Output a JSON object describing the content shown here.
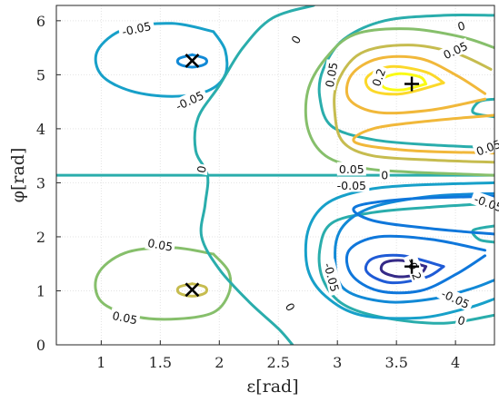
{
  "chart_data": {
    "type": "contour",
    "title": "",
    "xlabel": "ε[rad]",
    "ylabel": "φ[rad]",
    "xlim": [
      0.62,
      4.33
    ],
    "ylim": [
      0,
      6.283
    ],
    "grid": true,
    "xticks": [
      1,
      1.5,
      2,
      2.5,
      3,
      3.5,
      4
    ],
    "yticks": [
      0,
      1,
      2,
      3,
      4,
      5,
      6
    ],
    "xtick_labels": [
      "1",
      "1.5",
      "2",
      "2.5",
      "3",
      "3.5",
      "4"
    ],
    "ytick_labels": [
      "0",
      "1",
      "2",
      "3",
      "4",
      "5",
      "6"
    ],
    "colormap": "parula",
    "level_colors": {
      "-0.25": "#352a87",
      "-0.2": "#1f5bd6",
      "-0.15": "#0f77db",
      "-0.1": "#1189d6",
      "-0.05": "#17a0c9",
      "0": "#2aadac",
      "0.05": "#86bf6b",
      "0.1": "#c6bc4f",
      "0.15": "#f1b83a",
      "0.2": "#fbd82a",
      "0.25": "#f9fb15"
    },
    "contours": [
      {
        "level": -0.05,
        "points": [
          [
            1.95,
            5.8
          ],
          [
            1.6,
            5.95
          ],
          [
            1.2,
            5.85
          ],
          [
            0.97,
            5.45
          ],
          [
            1.0,
            5.0
          ],
          [
            1.25,
            4.7
          ],
          [
            1.6,
            4.6
          ],
          [
            1.9,
            4.7
          ],
          [
            2.05,
            5.0
          ],
          [
            2.05,
            5.45
          ],
          [
            1.95,
            5.8
          ]
        ]
      },
      {
        "level": -0.1,
        "points": [
          [
            1.77,
            5.37
          ],
          [
            1.88,
            5.3
          ],
          [
            1.88,
            5.2
          ],
          [
            1.77,
            5.14
          ],
          [
            1.66,
            5.2
          ],
          [
            1.66,
            5.3
          ],
          [
            1.77,
            5.37
          ]
        ]
      },
      {
        "level": 0.05,
        "points": [
          [
            1.95,
            1.68
          ],
          [
            1.6,
            1.8
          ],
          [
            1.2,
            1.7
          ],
          [
            0.97,
            1.3
          ],
          [
            1.0,
            0.8
          ],
          [
            1.3,
            0.52
          ],
          [
            1.65,
            0.48
          ],
          [
            1.95,
            0.6
          ],
          [
            2.08,
            0.95
          ],
          [
            2.08,
            1.35
          ],
          [
            1.95,
            1.68
          ]
        ]
      },
      {
        "level": 0.1,
        "points": [
          [
            1.77,
            1.13
          ],
          [
            1.88,
            1.07
          ],
          [
            1.88,
            0.96
          ],
          [
            1.77,
            0.9
          ],
          [
            1.66,
            0.96
          ],
          [
            1.66,
            1.07
          ],
          [
            1.77,
            1.13
          ]
        ]
      },
      {
        "level": 0,
        "points": [
          [
            0.62,
            3.14
          ],
          [
            1.5,
            3.14
          ],
          [
            2.5,
            3.14
          ],
          [
            3.5,
            3.14
          ],
          [
            4.33,
            3.14
          ]
        ]
      },
      {
        "level": 0,
        "points": [
          [
            2.8,
            6.283
          ],
          [
            2.45,
            6.05
          ],
          [
            2.2,
            5.5
          ],
          [
            2.0,
            4.8
          ],
          [
            1.82,
            4.2
          ],
          [
            1.8,
            3.6
          ],
          [
            1.9,
            3.14
          ],
          [
            1.88,
            2.6
          ],
          [
            1.85,
            2.0
          ],
          [
            2.0,
            1.4
          ],
          [
            2.25,
            0.8
          ],
          [
            2.5,
            0.3
          ],
          [
            2.62,
            0.0
          ]
        ]
      },
      {
        "level": 0,
        "points": [
          [
            4.33,
            4.55
          ],
          [
            4.2,
            4.5
          ],
          [
            4.15,
            4.3
          ],
          [
            4.33,
            4.22
          ]
        ]
      },
      {
        "level": 0,
        "points": [
          [
            4.33,
            1.9
          ],
          [
            4.2,
            1.95
          ],
          [
            4.15,
            2.12
          ],
          [
            4.33,
            2.2
          ]
        ]
      },
      {
        "level": 0,
        "points": [
          [
            4.33,
            6.1
          ],
          [
            3.9,
            6.1
          ],
          [
            3.4,
            6.0
          ],
          [
            3.05,
            5.65
          ],
          [
            2.88,
            5.1
          ],
          [
            2.85,
            4.6
          ],
          [
            2.95,
            4.05
          ],
          [
            3.3,
            3.8
          ],
          [
            3.8,
            3.7
          ],
          [
            4.33,
            3.65
          ]
        ]
      },
      {
        "level": 0,
        "points": [
          [
            4.33,
            0.55
          ],
          [
            3.9,
            0.4
          ],
          [
            3.4,
            0.5
          ],
          [
            3.05,
            0.75
          ],
          [
            2.88,
            1.2
          ],
          [
            2.85,
            1.75
          ],
          [
            2.95,
            2.25
          ],
          [
            3.3,
            2.45
          ],
          [
            3.8,
            2.55
          ],
          [
            4.33,
            2.62
          ]
        ]
      },
      {
        "level": 0.05,
        "points": [
          [
            4.33,
            3.14
          ],
          [
            3.6,
            3.2
          ],
          [
            3.2,
            3.28
          ],
          [
            2.9,
            3.5
          ],
          [
            2.75,
            4.0
          ],
          [
            2.75,
            4.7
          ],
          [
            2.9,
            5.3
          ],
          [
            3.15,
            5.75
          ],
          [
            3.6,
            5.85
          ],
          [
            4.05,
            5.7
          ],
          [
            4.33,
            5.5
          ]
        ]
      },
      {
        "level": -0.05,
        "points": [
          [
            4.33,
            3.0
          ],
          [
            3.6,
            2.95
          ],
          [
            3.2,
            2.85
          ],
          [
            2.9,
            2.6
          ],
          [
            2.75,
            2.1
          ],
          [
            2.75,
            1.4
          ],
          [
            2.9,
            0.9
          ],
          [
            3.2,
            0.55
          ],
          [
            3.7,
            0.5
          ],
          [
            4.1,
            0.68
          ],
          [
            4.33,
            0.85
          ]
        ]
      },
      {
        "level": 0.1,
        "points": [
          [
            4.33,
            3.38
          ],
          [
            3.8,
            3.42
          ],
          [
            3.3,
            3.5
          ],
          [
            3.05,
            3.75
          ],
          [
            2.98,
            4.25
          ],
          [
            3.0,
            4.85
          ],
          [
            3.2,
            5.4
          ],
          [
            3.6,
            5.55
          ],
          [
            4.0,
            5.4
          ],
          [
            4.3,
            5.1
          ]
        ]
      },
      {
        "level": -0.1,
        "points": [
          [
            4.33,
            2.8
          ],
          [
            3.8,
            2.75
          ],
          [
            3.3,
            2.55
          ],
          [
            3.05,
            2.2
          ],
          [
            2.98,
            1.7
          ],
          [
            3.05,
            1.05
          ],
          [
            3.4,
            0.8
          ],
          [
            3.8,
            0.85
          ],
          [
            4.15,
            1.05
          ],
          [
            4.33,
            1.2
          ]
        ]
      },
      {
        "level": 0.15,
        "points": [
          [
            4.25,
            4.55
          ],
          [
            3.8,
            4.35
          ],
          [
            3.35,
            4.3
          ],
          [
            3.1,
            4.55
          ],
          [
            3.12,
            5.0
          ],
          [
            3.35,
            5.3
          ],
          [
            3.7,
            5.3
          ],
          [
            4.0,
            5.0
          ],
          [
            4.25,
            4.65
          ]
        ]
      },
      {
        "level": 0.15,
        "points": [
          [
            4.33,
            4.25
          ],
          [
            3.8,
            4.15
          ],
          [
            3.3,
            4.0
          ],
          [
            3.15,
            3.75
          ],
          [
            3.6,
            3.6
          ],
          [
            4.33,
            3.55
          ]
        ]
      },
      {
        "level": -0.15,
        "points": [
          [
            4.25,
            1.75
          ],
          [
            3.8,
            1.95
          ],
          [
            3.35,
            2.0
          ],
          [
            3.1,
            1.75
          ],
          [
            3.12,
            1.3
          ],
          [
            3.35,
            1.0
          ],
          [
            3.7,
            1.0
          ],
          [
            4.0,
            1.3
          ],
          [
            4.25,
            1.65
          ]
        ]
      },
      {
        "level": -0.15,
        "points": [
          [
            4.33,
            2.05
          ],
          [
            3.8,
            2.15
          ],
          [
            3.3,
            2.3
          ],
          [
            3.15,
            2.55
          ],
          [
            3.6,
            2.7
          ],
          [
            4.33,
            2.75
          ]
        ]
      },
      {
        "level": 0.2,
        "points": [
          [
            3.9,
            4.85
          ],
          [
            3.55,
            4.65
          ],
          [
            3.3,
            4.7
          ],
          [
            3.25,
            4.95
          ],
          [
            3.45,
            5.15
          ],
          [
            3.75,
            5.05
          ],
          [
            3.9,
            4.85
          ]
        ]
      },
      {
        "level": -0.2,
        "points": [
          [
            3.9,
            1.45
          ],
          [
            3.55,
            1.65
          ],
          [
            3.3,
            1.6
          ],
          [
            3.25,
            1.35
          ],
          [
            3.45,
            1.15
          ],
          [
            3.75,
            1.25
          ],
          [
            3.9,
            1.45
          ]
        ]
      },
      {
        "level": 0.25,
        "points": [
          [
            3.75,
            4.83
          ],
          [
            3.55,
            4.72
          ],
          [
            3.4,
            4.76
          ],
          [
            3.38,
            4.92
          ],
          [
            3.52,
            5.02
          ],
          [
            3.7,
            4.96
          ],
          [
            3.75,
            4.83
          ]
        ]
      },
      {
        "level": -0.25,
        "points": [
          [
            3.75,
            1.45
          ],
          [
            3.55,
            1.56
          ],
          [
            3.4,
            1.52
          ],
          [
            3.38,
            1.36
          ],
          [
            3.52,
            1.26
          ],
          [
            3.7,
            1.32
          ],
          [
            3.75,
            1.45
          ]
        ]
      }
    ],
    "contour_labels": [
      {
        "text": "-0.05",
        "x": 1.3,
        "y": 5.85,
        "angle": -12
      },
      {
        "text": "-0.05",
        "x": 1.75,
        "y": 4.52,
        "angle": -25
      },
      {
        "text": "0.05",
        "x": 1.5,
        "y": 1.85,
        "angle": 10
      },
      {
        "text": "0.05",
        "x": 1.2,
        "y": 0.5,
        "angle": 12
      },
      {
        "text": "0",
        "x": 2.65,
        "y": 5.65,
        "angle": -60
      },
      {
        "text": "0",
        "x": 1.85,
        "y": 3.25,
        "angle": -80
      },
      {
        "text": "0",
        "x": 2.6,
        "y": 0.7,
        "angle": 60
      },
      {
        "text": "0.05",
        "x": 2.95,
        "y": 5.0,
        "angle": -80
      },
      {
        "text": "-0.05",
        "x": 2.95,
        "y": 1.25,
        "angle": 75
      },
      {
        "text": "0.2",
        "x": 3.35,
        "y": 4.95,
        "angle": -70
      },
      {
        "text": "-0.2",
        "x": 3.65,
        "y": 1.4,
        "angle": 70
      },
      {
        "text": "0",
        "x": 4.05,
        "y": 5.9,
        "angle": -15
      },
      {
        "text": "0.05",
        "x": 4.0,
        "y": 5.45,
        "angle": -25
      },
      {
        "text": "0.05",
        "x": 4.28,
        "y": 3.65,
        "angle": -20
      },
      {
        "text": "0.05",
        "x": 3.12,
        "y": 3.25,
        "angle": 0
      },
      {
        "text": "0",
        "x": 3.4,
        "y": 3.14,
        "angle": 0
      },
      {
        "text": "-0.05",
        "x": 3.12,
        "y": 2.95,
        "angle": 0
      },
      {
        "text": "-0.05",
        "x": 4.28,
        "y": 2.62,
        "angle": 20
      },
      {
        "text": "-0.05",
        "x": 4.0,
        "y": 0.85,
        "angle": 25
      },
      {
        "text": "0",
        "x": 4.05,
        "y": 0.45,
        "angle": 15
      }
    ],
    "markers": [
      {
        "type": "x",
        "x": 1.77,
        "y": 5.26
      },
      {
        "type": "x",
        "x": 1.77,
        "y": 1.02
      },
      {
        "type": "+",
        "x": 3.63,
        "y": 4.83
      },
      {
        "type": "+",
        "x": 3.63,
        "y": 1.45
      }
    ]
  }
}
